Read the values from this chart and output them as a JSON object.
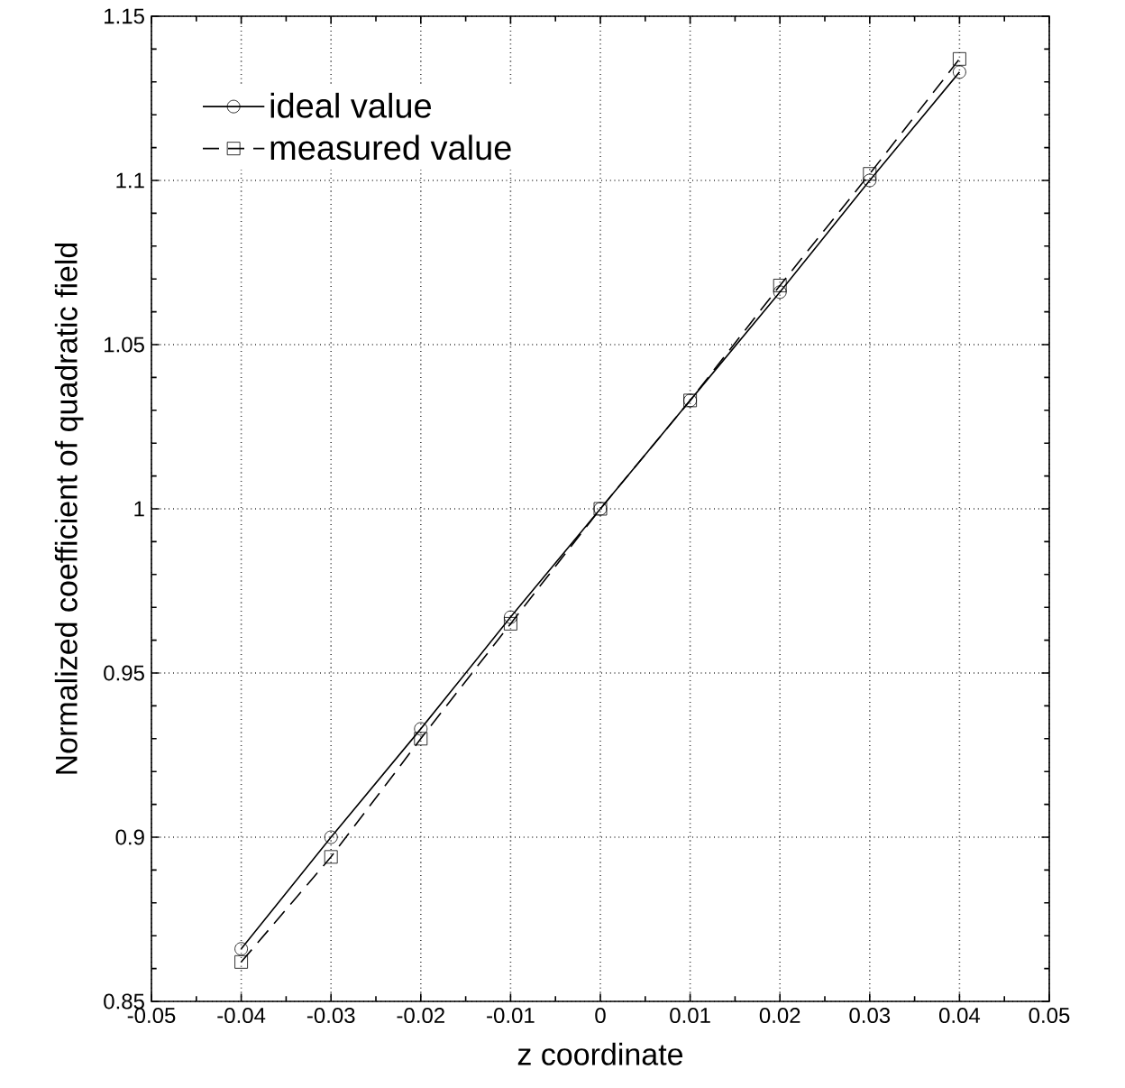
{
  "chart_data": {
    "type": "line",
    "xlabel": "z coordinate",
    "ylabel": "Normalized coefficient of quadratic field",
    "x": [
      -0.04,
      -0.03,
      -0.02,
      -0.01,
      0,
      0.01,
      0.02,
      0.03,
      0.04
    ],
    "series": [
      {
        "name": "ideal value",
        "color": "#000000",
        "marker": "circle",
        "line_style": "solid",
        "values": [
          0.866,
          0.9,
          0.933,
          0.967,
          1.0,
          1.033,
          1.066,
          1.1,
          1.133
        ]
      },
      {
        "name": "measured value",
        "color": "#000000",
        "marker": "square",
        "line_style": "dashed",
        "values": [
          0.862,
          0.894,
          0.93,
          0.965,
          1.0,
          1.033,
          1.068,
          1.102,
          1.137
        ]
      }
    ],
    "xlim": [
      -0.05,
      0.05
    ],
    "ylim": [
      0.85,
      1.15
    ],
    "xticks": [
      -0.05,
      -0.04,
      -0.03,
      -0.02,
      -0.01,
      0,
      0.01,
      0.02,
      0.03,
      0.04,
      0.05
    ],
    "yticks": [
      0.85,
      0.9,
      0.95,
      1,
      1.05,
      1.1,
      1.15
    ],
    "grid": true,
    "legend": "top left"
  }
}
